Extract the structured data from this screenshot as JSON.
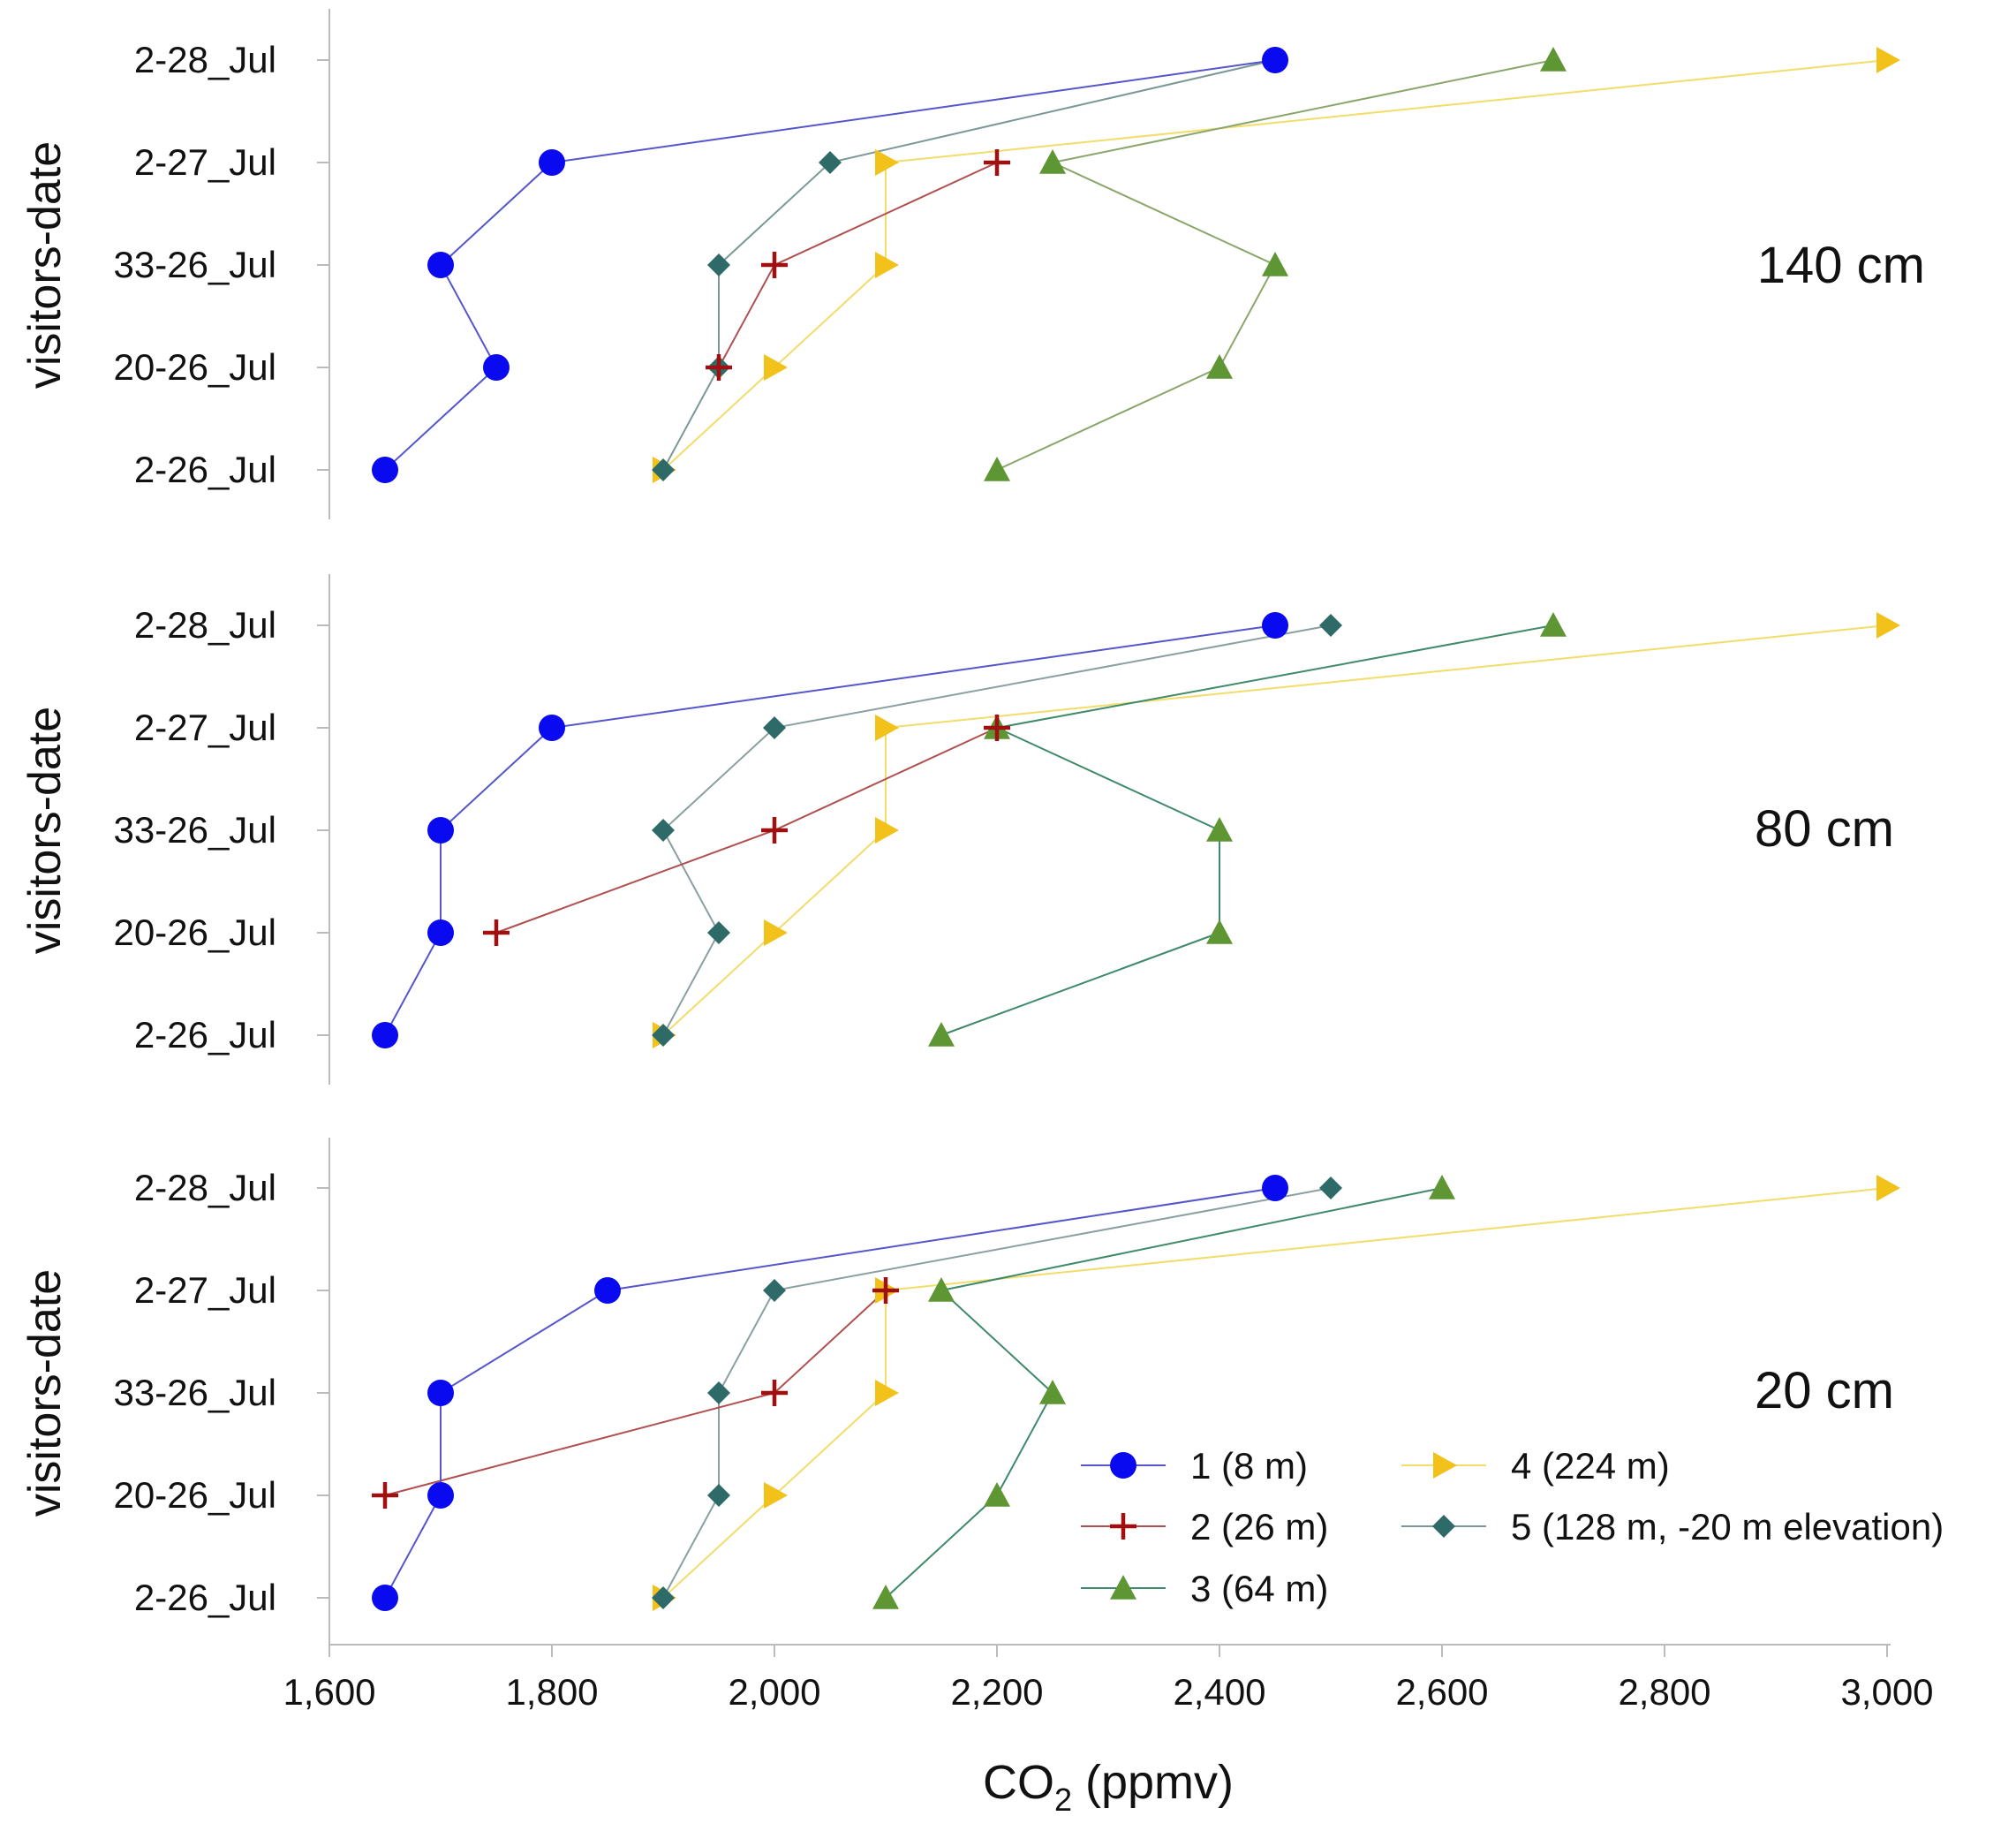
{
  "chart_data": {
    "type": "line",
    "orientation": "horizontal-profile",
    "xlabel_main": "CO",
    "xlabel_sub": "2",
    "xlabel_unit": " (ppmv)",
    "xlim": [
      1600,
      3000
    ],
    "x_ticks": [
      1600,
      1800,
      2000,
      2200,
      2400,
      2600,
      2800,
      3000
    ],
    "x_tick_labels": [
      "1,600",
      "1,800",
      "2,000",
      "2,200",
      "2,400",
      "2,600",
      "2,800",
      "3,000"
    ],
    "ylabel": "visitors-date",
    "categories": [
      "2-28_Jul",
      "2-27_Jul",
      "33-26_Jul",
      "20-26_Jul",
      "2-26_Jul"
    ],
    "legend": {
      "position": "bottom-right of lower panel",
      "entries": [
        {
          "name": "1 (8 m)",
          "color": "#0a0af0",
          "marker": "circle"
        },
        {
          "name": "4 (224 m)",
          "color": "#f2c21b",
          "marker": "triangle-right"
        },
        {
          "name": "2 (26 m)",
          "color": "#a01010",
          "marker": "plus"
        },
        {
          "name": "5 (128 m, -20 m elevation)",
          "color": "#2e6b68",
          "marker": "diamond"
        },
        {
          "name": "3 (64 m)",
          "color": "#5e9634",
          "marker": "triangle-up"
        }
      ]
    },
    "panels": [
      {
        "label": "140 cm",
        "series": [
          {
            "name": "1 (8 m)",
            "color": "#0a0af0",
            "line_color": "#5555cc",
            "marker": "circle",
            "values": {
              "2-28_Jul": 2450,
              "2-27_Jul": 1800,
              "33-26_Jul": 1700,
              "20-26_Jul": 1750,
              "2-26_Jul": 1650
            }
          },
          {
            "name": "2 (26 m)",
            "color": "#a01010",
            "line_color": "#b05050",
            "marker": "plus",
            "values": {
              "2-27_Jul": 2200,
              "33-26_Jul": 2000,
              "20-26_Jul": 1950
            }
          },
          {
            "name": "3 (64 m)",
            "color": "#5e9634",
            "line_color": "#8aa66a",
            "marker": "triangle-up",
            "values": {
              "2-28_Jul": 2700,
              "2-27_Jul": 2250,
              "33-26_Jul": 2450,
              "20-26_Jul": 2400,
              "2-26_Jul": 2200
            }
          },
          {
            "name": "4 (224 m)",
            "color": "#f2c21b",
            "line_color": "#f2dc6a",
            "marker": "triangle-right",
            "values": {
              "2-28_Jul": 3000,
              "2-27_Jul": 2100,
              "33-26_Jul": 2100,
              "20-26_Jul": 2000,
              "2-26_Jul": 1900
            }
          },
          {
            "name": "5 (128 m, -20 m elevation)",
            "color": "#2e6b68",
            "line_color": "#7a9896",
            "marker": "diamond",
            "values": {
              "2-28_Jul": 2450,
              "2-27_Jul": 2050,
              "33-26_Jul": 1950,
              "20-26_Jul": 1950,
              "2-26_Jul": 1900
            }
          }
        ]
      },
      {
        "label": "80 cm",
        "series": [
          {
            "name": "1 (8 m)",
            "color": "#0a0af0",
            "line_color": "#5555cc",
            "marker": "circle",
            "values": {
              "2-28_Jul": 2450,
              "2-27_Jul": 1800,
              "33-26_Jul": 1700,
              "20-26_Jul": 1700,
              "2-26_Jul": 1650
            }
          },
          {
            "name": "2 (26 m)",
            "color": "#a01010",
            "line_color": "#b05050",
            "marker": "plus",
            "values": {
              "2-27_Jul": 2200,
              "33-26_Jul": 2000,
              "20-26_Jul": 1750
            }
          },
          {
            "name": "3 (64 m)",
            "color": "#5e9634",
            "line_color": "#3f8a6a",
            "marker": "triangle-up",
            "values": {
              "2-28_Jul": 2700,
              "2-27_Jul": 2200,
              "33-26_Jul": 2400,
              "20-26_Jul": 2400,
              "2-26_Jul": 2150
            }
          },
          {
            "name": "4 (224 m)",
            "color": "#f2c21b",
            "line_color": "#f2dc6a",
            "marker": "triangle-right",
            "values": {
              "2-28_Jul": 3000,
              "2-27_Jul": 2100,
              "33-26_Jul": 2100,
              "20-26_Jul": 2000,
              "2-26_Jul": 1900
            }
          },
          {
            "name": "5 (128 m, -20 m elevation)",
            "color": "#2e6b68",
            "line_color": "#8aa0a0",
            "marker": "diamond",
            "values": {
              "2-28_Jul": 2500,
              "2-27_Jul": 2000,
              "33-26_Jul": 1900,
              "20-26_Jul": 1950,
              "2-26_Jul": 1900
            }
          }
        ]
      },
      {
        "label": "20 cm",
        "series": [
          {
            "name": "1 (8 m)",
            "color": "#0a0af0",
            "line_color": "#5555cc",
            "marker": "circle",
            "values": {
              "2-28_Jul": 2450,
              "2-27_Jul": 1850,
              "33-26_Jul": 1700,
              "20-26_Jul": 1700,
              "2-26_Jul": 1650
            }
          },
          {
            "name": "2 (26 m)",
            "color": "#a01010",
            "line_color": "#b05050",
            "marker": "plus",
            "values": {
              "2-27_Jul": 2100,
              "33-26_Jul": 2000,
              "20-26_Jul": 1650
            }
          },
          {
            "name": "3 (64 m)",
            "color": "#5e9634",
            "line_color": "#3f8a6a",
            "marker": "triangle-up",
            "values": {
              "2-28_Jul": 2600,
              "2-27_Jul": 2150,
              "33-26_Jul": 2250,
              "20-26_Jul": 2200,
              "2-26_Jul": 2100
            }
          },
          {
            "name": "4 (224 m)",
            "color": "#f2c21b",
            "line_color": "#f2dc6a",
            "marker": "triangle-right",
            "values": {
              "2-28_Jul": 3000,
              "2-27_Jul": 2100,
              "33-26_Jul": 2100,
              "20-26_Jul": 2000,
              "2-26_Jul": 1900
            }
          },
          {
            "name": "5 (128 m, -20 m elevation)",
            "color": "#2e6b68",
            "line_color": "#8aa0a0",
            "marker": "diamond",
            "values": {
              "2-28_Jul": 2500,
              "2-27_Jul": 2000,
              "33-26_Jul": 1950,
              "20-26_Jul": 1950,
              "2-26_Jul": 1900
            }
          }
        ]
      }
    ]
  }
}
